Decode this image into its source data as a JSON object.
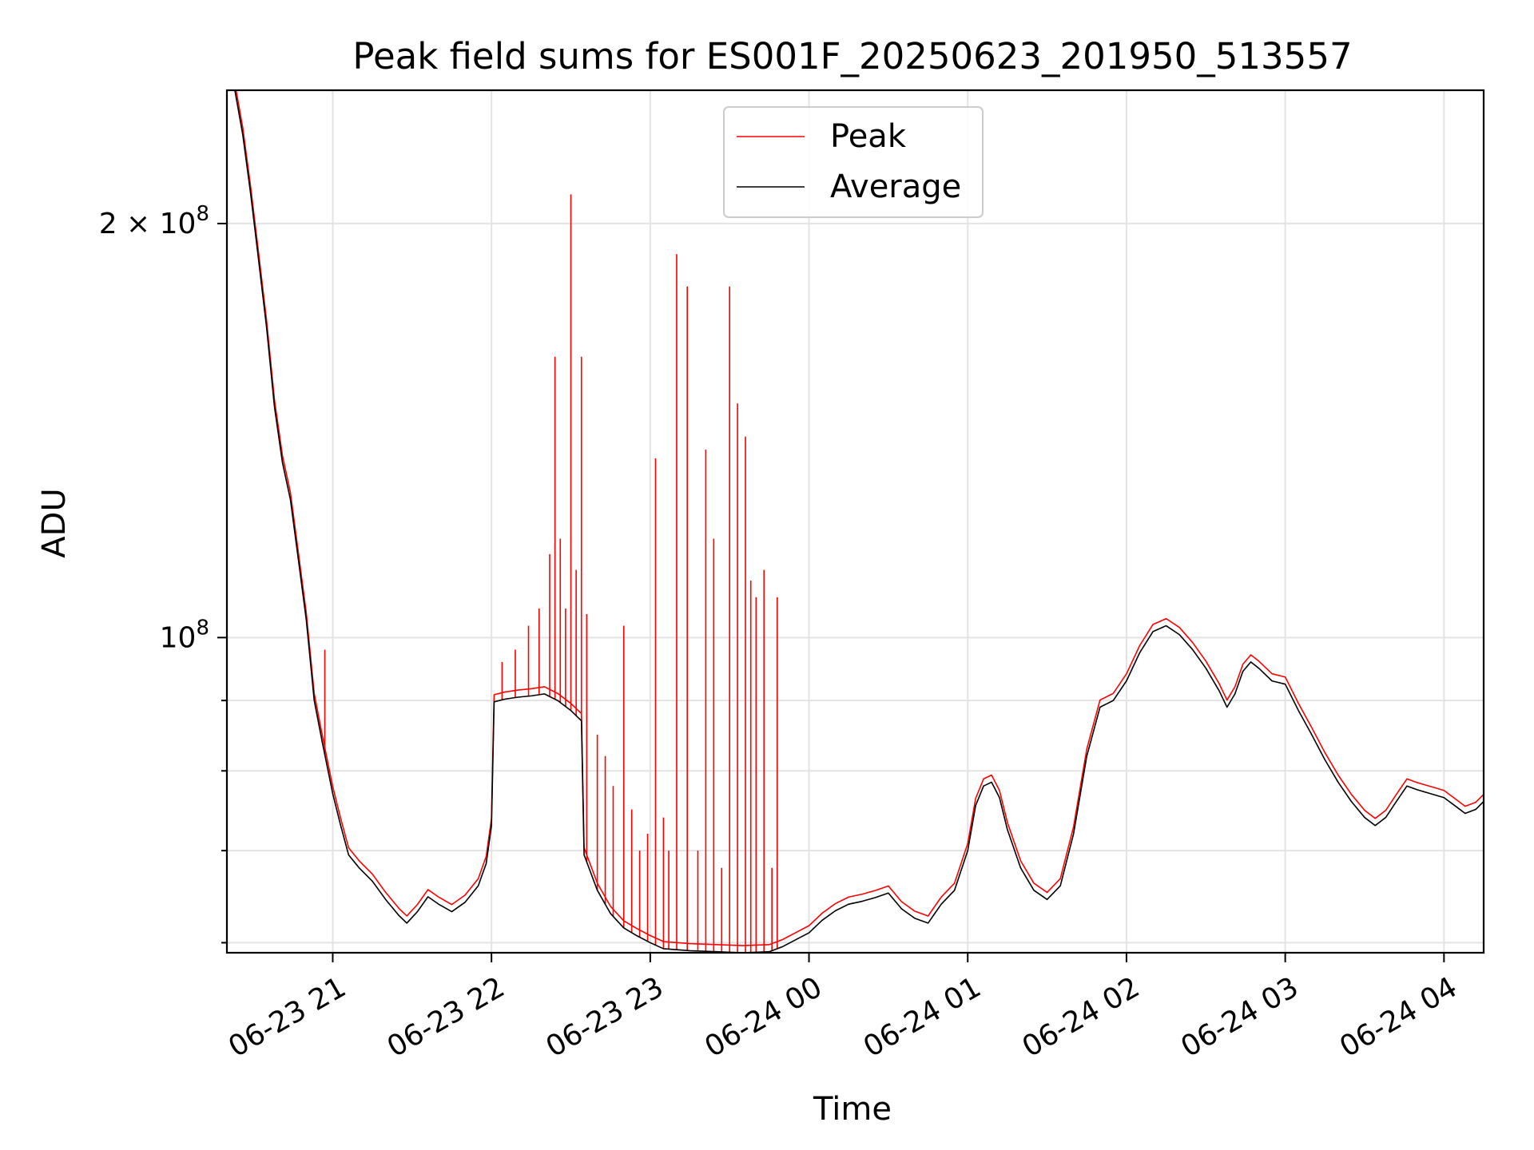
{
  "chart_data": {
    "type": "line",
    "title": "Peak field sums for ES001F_20250623_201950_513557",
    "xlabel": "Time",
    "ylabel": "ADU",
    "y_scale": "log",
    "grid": true,
    "legend_position": "top-center",
    "xlim": [
      "2025-06-23 20:20",
      "2025-06-24 04:15"
    ],
    "ylim": [
      59000000,
      250000000
    ],
    "x_ticks": [
      {
        "t": "2025-06-23 21:00",
        "label": "06-23 21"
      },
      {
        "t": "2025-06-23 22:00",
        "label": "06-23 22"
      },
      {
        "t": "2025-06-23 23:00",
        "label": "06-23 23"
      },
      {
        "t": "2025-06-24 00:00",
        "label": "06-24 00"
      },
      {
        "t": "2025-06-24 01:00",
        "label": "06-24 01"
      },
      {
        "t": "2025-06-24 02:00",
        "label": "06-24 02"
      },
      {
        "t": "2025-06-24 03:00",
        "label": "06-24 03"
      },
      {
        "t": "2025-06-24 04:00",
        "label": "06-24 04"
      }
    ],
    "y_ticks_major": [
      {
        "v": 100000000,
        "base": "10",
        "exp": "8",
        "coef": ""
      },
      {
        "v": 200000000,
        "base": "10",
        "exp": "8",
        "coef": "2 × "
      }
    ],
    "y_ticks_minor": [
      60000000,
      70000000,
      80000000,
      90000000
    ],
    "series": [
      {
        "name": "Average",
        "color": "#000000",
        "points": [
          [
            "2025-06-23 20:20",
            250000000
          ],
          [
            "2025-06-23 20:23",
            250000000
          ],
          [
            "2025-06-23 20:26",
            232000000
          ],
          [
            "2025-06-23 20:29",
            210000000
          ],
          [
            "2025-06-23 20:32",
            188000000
          ],
          [
            "2025-06-23 20:35",
            168000000
          ],
          [
            "2025-06-23 20:38",
            147000000
          ],
          [
            "2025-06-23 20:41",
            134000000
          ],
          [
            "2025-06-23 20:44",
            126000000
          ],
          [
            "2025-06-23 20:47",
            114000000
          ],
          [
            "2025-06-23 20:50",
            103000000
          ],
          [
            "2025-06-23 20:53",
            90000000
          ],
          [
            "2025-06-23 20:56",
            84000000
          ],
          [
            "2025-06-23 21:00",
            77000000
          ],
          [
            "2025-06-23 21:03",
            73000000
          ],
          [
            "2025-06-23 21:06",
            69500000
          ],
          [
            "2025-06-23 21:10",
            68000000
          ],
          [
            "2025-06-23 21:15",
            66500000
          ],
          [
            "2025-06-23 21:20",
            64500000
          ],
          [
            "2025-06-23 21:25",
            62800000
          ],
          [
            "2025-06-23 21:28",
            62000000
          ],
          [
            "2025-06-23 21:32",
            63200000
          ],
          [
            "2025-06-23 21:36",
            64800000
          ],
          [
            "2025-06-23 21:40",
            64000000
          ],
          [
            "2025-06-23 21:45",
            63200000
          ],
          [
            "2025-06-23 21:50",
            64200000
          ],
          [
            "2025-06-23 21:55",
            66000000
          ],
          [
            "2025-06-23 21:58",
            68500000
          ],
          [
            "2025-06-23 22:00",
            73000000
          ],
          [
            "2025-06-23 22:01",
            89800000
          ],
          [
            "2025-06-23 22:05",
            90200000
          ],
          [
            "2025-06-23 22:10",
            90500000
          ],
          [
            "2025-06-23 22:15",
            90700000
          ],
          [
            "2025-06-23 22:20",
            91000000
          ],
          [
            "2025-06-23 22:25",
            90000000
          ],
          [
            "2025-06-23 22:30",
            88500000
          ],
          [
            "2025-06-23 22:34",
            87000000
          ],
          [
            "2025-06-23 22:35",
            69500000
          ],
          [
            "2025-06-23 22:40",
            65500000
          ],
          [
            "2025-06-23 22:45",
            63000000
          ],
          [
            "2025-06-23 22:50",
            61500000
          ],
          [
            "2025-06-23 22:55",
            60700000
          ],
          [
            "2025-06-23 23:00",
            60000000
          ],
          [
            "2025-06-23 23:05",
            59400000
          ],
          [
            "2025-06-23 23:15",
            59200000
          ],
          [
            "2025-06-23 23:25",
            59100000
          ],
          [
            "2025-06-23 23:35",
            59000000
          ],
          [
            "2025-06-23 23:45",
            59100000
          ],
          [
            "2025-06-23 23:50",
            59600000
          ],
          [
            "2025-06-23 23:55",
            60300000
          ],
          [
            "2025-06-24 00:00",
            61000000
          ],
          [
            "2025-06-24 00:05",
            62300000
          ],
          [
            "2025-06-24 00:10",
            63300000
          ],
          [
            "2025-06-24 00:15",
            64000000
          ],
          [
            "2025-06-24 00:20",
            64300000
          ],
          [
            "2025-06-24 00:25",
            64700000
          ],
          [
            "2025-06-24 00:30",
            65200000
          ],
          [
            "2025-06-24 00:35",
            63500000
          ],
          [
            "2025-06-24 00:40",
            62500000
          ],
          [
            "2025-06-24 00:45",
            62000000
          ],
          [
            "2025-06-24 00:50",
            64000000
          ],
          [
            "2025-06-24 00:55",
            65500000
          ],
          [
            "2025-06-24 01:00",
            70000000
          ],
          [
            "2025-06-24 01:03",
            75500000
          ],
          [
            "2025-06-24 01:06",
            78000000
          ],
          [
            "2025-06-24 01:09",
            78500000
          ],
          [
            "2025-06-24 01:12",
            76500000
          ],
          [
            "2025-06-24 01:15",
            72500000
          ],
          [
            "2025-06-24 01:20",
            68000000
          ],
          [
            "2025-06-24 01:25",
            65500000
          ],
          [
            "2025-06-24 01:30",
            64500000
          ],
          [
            "2025-06-24 01:35",
            66000000
          ],
          [
            "2025-06-24 01:40",
            72000000
          ],
          [
            "2025-06-24 01:45",
            82000000
          ],
          [
            "2025-06-24 01:50",
            89000000
          ],
          [
            "2025-06-24 01:55",
            90000000
          ],
          [
            "2025-06-24 02:00",
            93000000
          ],
          [
            "2025-06-24 02:05",
            97500000
          ],
          [
            "2025-06-24 02:10",
            101000000
          ],
          [
            "2025-06-24 02:15",
            102000000
          ],
          [
            "2025-06-24 02:20",
            100500000
          ],
          [
            "2025-06-24 02:25",
            98000000
          ],
          [
            "2025-06-24 02:30",
            95000000
          ],
          [
            "2025-06-24 02:35",
            91500000
          ],
          [
            "2025-06-24 02:38",
            89000000
          ],
          [
            "2025-06-24 02:41",
            91000000
          ],
          [
            "2025-06-24 02:44",
            94500000
          ],
          [
            "2025-06-24 02:47",
            96000000
          ],
          [
            "2025-06-24 02:50",
            95000000
          ],
          [
            "2025-06-24 02:55",
            93000000
          ],
          [
            "2025-06-24 03:00",
            92500000
          ],
          [
            "2025-06-24 03:05",
            88500000
          ],
          [
            "2025-06-24 03:10",
            85000000
          ],
          [
            "2025-06-24 03:15",
            81500000
          ],
          [
            "2025-06-24 03:20",
            78500000
          ],
          [
            "2025-06-24 03:25",
            76000000
          ],
          [
            "2025-06-24 03:30",
            74000000
          ],
          [
            "2025-06-24 03:34",
            73000000
          ],
          [
            "2025-06-24 03:38",
            74000000
          ],
          [
            "2025-06-24 03:42",
            76000000
          ],
          [
            "2025-06-24 03:46",
            78000000
          ],
          [
            "2025-06-24 03:50",
            77500000
          ],
          [
            "2025-06-24 03:55",
            77000000
          ],
          [
            "2025-06-24 04:00",
            76500000
          ],
          [
            "2025-06-24 04:04",
            75500000
          ],
          [
            "2025-06-24 04:08",
            74500000
          ],
          [
            "2025-06-24 04:12",
            75000000
          ],
          [
            "2025-06-24 04:15",
            76000000
          ]
        ]
      },
      {
        "name": "Peak",
        "color": "#ff0000",
        "spikes": [
          [
            "2025-06-23 20:57",
            98000000
          ],
          [
            "2025-06-23 22:04",
            96000000
          ],
          [
            "2025-06-23 22:09",
            98000000
          ],
          [
            "2025-06-23 22:14",
            102000000
          ],
          [
            "2025-06-23 22:18",
            105000000
          ],
          [
            "2025-06-23 22:22",
            115000000
          ],
          [
            "2025-06-23 22:24",
            160000000
          ],
          [
            "2025-06-23 22:26",
            118000000
          ],
          [
            "2025-06-23 22:28",
            105000000
          ],
          [
            "2025-06-23 22:30",
            210000000
          ],
          [
            "2025-06-23 22:32",
            112000000
          ],
          [
            "2025-06-23 22:34",
            160000000
          ],
          [
            "2025-06-23 22:36",
            104000000
          ],
          [
            "2025-06-23 22:40",
            85000000
          ],
          [
            "2025-06-23 22:43",
            82000000
          ],
          [
            "2025-06-23 22:46",
            78000000
          ],
          [
            "2025-06-23 22:50",
            102000000
          ],
          [
            "2025-06-23 22:53",
            75000000
          ],
          [
            "2025-06-23 22:56",
            70000000
          ],
          [
            "2025-06-23 22:59",
            72000000
          ],
          [
            "2025-06-23 23:02",
            135000000
          ],
          [
            "2025-06-23 23:05",
            74000000
          ],
          [
            "2025-06-23 23:07",
            70000000
          ],
          [
            "2025-06-23 23:10",
            190000000
          ],
          [
            "2025-06-23 23:14",
            180000000
          ],
          [
            "2025-06-23 23:18",
            70000000
          ],
          [
            "2025-06-23 23:21",
            137000000
          ],
          [
            "2025-06-23 23:24",
            118000000
          ],
          [
            "2025-06-23 23:27",
            68000000
          ],
          [
            "2025-06-23 23:30",
            180000000
          ],
          [
            "2025-06-23 23:33",
            148000000
          ],
          [
            "2025-06-23 23:36",
            140000000
          ],
          [
            "2025-06-23 23:38",
            110000000
          ],
          [
            "2025-06-23 23:40",
            107000000
          ],
          [
            "2025-06-23 23:43",
            112000000
          ],
          [
            "2025-06-23 23:46",
            68000000
          ],
          [
            "2025-06-23 23:48",
            107000000
          ]
        ]
      }
    ]
  }
}
